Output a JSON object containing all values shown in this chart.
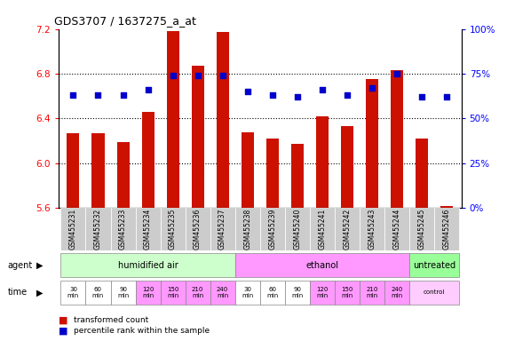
{
  "title": "GDS3707 / 1637275_a_at",
  "samples": [
    "GSM455231",
    "GSM455232",
    "GSM455233",
    "GSM455234",
    "GSM455235",
    "GSM455236",
    "GSM455237",
    "GSM455238",
    "GSM455239",
    "GSM455240",
    "GSM455241",
    "GSM455242",
    "GSM455243",
    "GSM455244",
    "GSM455245",
    "GSM455246"
  ],
  "bar_values": [
    6.27,
    6.27,
    6.19,
    6.46,
    7.18,
    6.87,
    7.17,
    6.28,
    6.22,
    6.17,
    6.42,
    6.33,
    6.75,
    6.83,
    6.22,
    5.62
  ],
  "dot_values": [
    63,
    63,
    63,
    66,
    74,
    74,
    74,
    65,
    63,
    62,
    66,
    63,
    67,
    75,
    62,
    62
  ],
  "ylim_left": [
    5.6,
    7.2
  ],
  "ylim_right": [
    0,
    100
  ],
  "yticks_left": [
    5.6,
    6.0,
    6.4,
    6.8,
    7.2
  ],
  "yticks_right": [
    0,
    25,
    50,
    75,
    100
  ],
  "ytick_labels_right": [
    "0%",
    "25%",
    "50%",
    "75%",
    "100%"
  ],
  "bar_color": "#cc1100",
  "dot_color": "#0000cc",
  "bar_bottom": 5.6,
  "agents": [
    {
      "label": "humidified air",
      "start": 0,
      "end": 7,
      "color": "#ccffcc"
    },
    {
      "label": "ethanol",
      "start": 7,
      "end": 14,
      "color": "#ff99ff"
    },
    {
      "label": "untreated",
      "start": 14,
      "end": 16,
      "color": "#99ff99"
    }
  ],
  "times": [
    {
      "label": "30\nmin",
      "col": 0,
      "color": "#ffffff"
    },
    {
      "label": "60\nmin",
      "col": 1,
      "color": "#ffffff"
    },
    {
      "label": "90\nmin",
      "col": 2,
      "color": "#ffffff"
    },
    {
      "label": "120\nmin",
      "col": 3,
      "color": "#ff99ff"
    },
    {
      "label": "150\nmin",
      "col": 4,
      "color": "#ff99ff"
    },
    {
      "label": "210\nmin",
      "col": 5,
      "color": "#ff99ff"
    },
    {
      "label": "240\nmin",
      "col": 6,
      "color": "#ff99ff"
    },
    {
      "label": "30\nmin",
      "col": 7,
      "color": "#ffffff"
    },
    {
      "label": "60\nmin",
      "col": 8,
      "color": "#ffffff"
    },
    {
      "label": "90\nmin",
      "col": 9,
      "color": "#ffffff"
    },
    {
      "label": "120\nmin",
      "col": 10,
      "color": "#ff99ff"
    },
    {
      "label": "150\nmin",
      "col": 11,
      "color": "#ff99ff"
    },
    {
      "label": "210\nmin",
      "col": 12,
      "color": "#ff99ff"
    },
    {
      "label": "240\nmin",
      "col": 13,
      "color": "#ff99ff"
    },
    {
      "label": "control",
      "col": 14,
      "color": "#ffccff",
      "span": 2
    }
  ],
  "legend_items": [
    {
      "label": "transformed count",
      "color": "#cc1100"
    },
    {
      "label": "percentile rank within the sample",
      "color": "#0000cc"
    }
  ],
  "bg_color": "#ffffff",
  "sample_bg": "#cccccc"
}
